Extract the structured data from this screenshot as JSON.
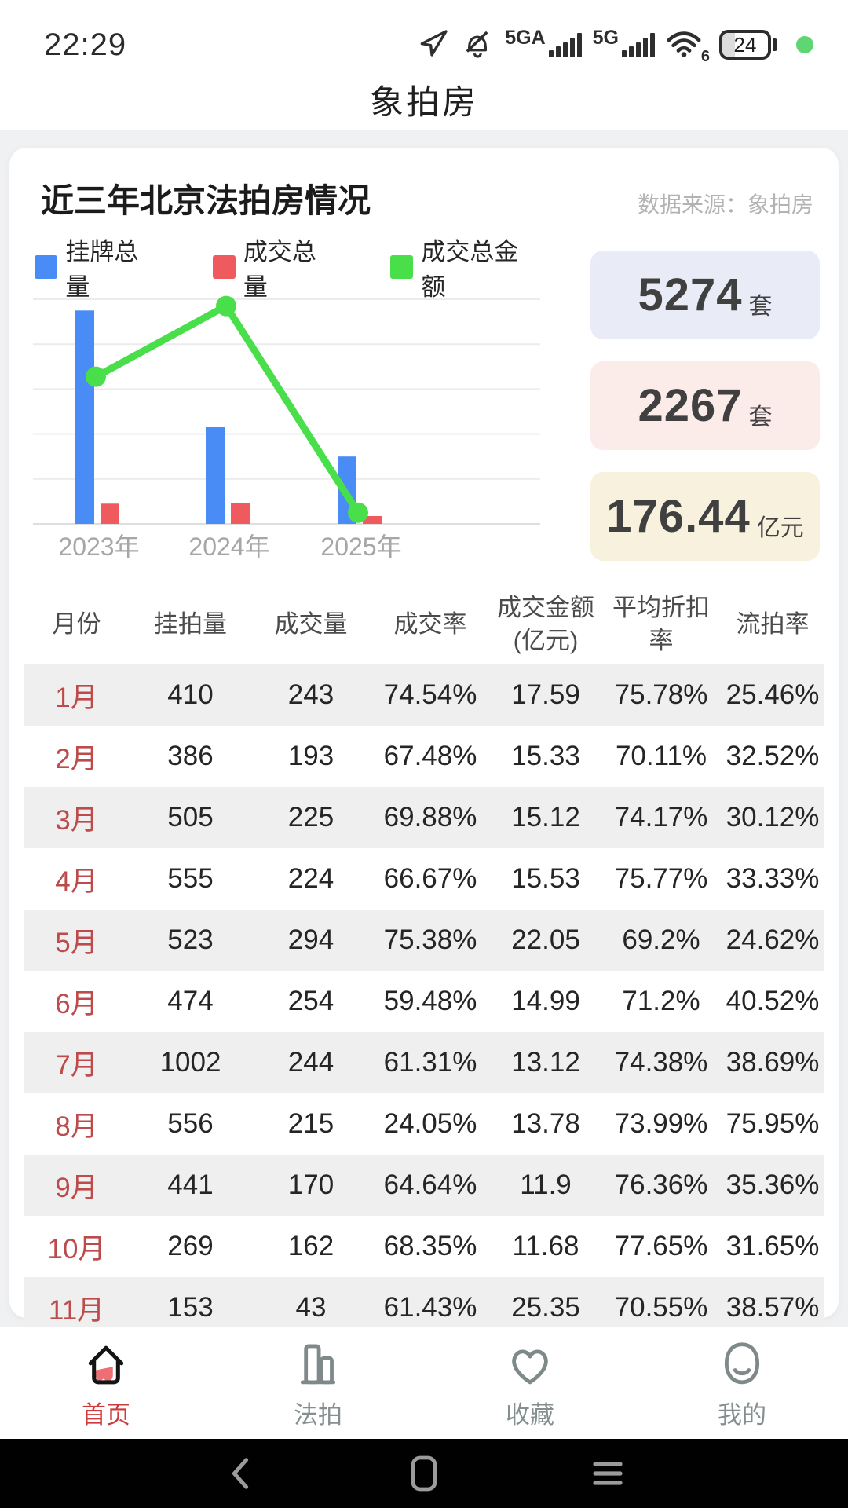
{
  "status_bar": {
    "time": "22:29",
    "network_label_1": "5GA",
    "network_label_2": "5G",
    "wifi_label": "6",
    "battery_level": "24",
    "indicator_color": "#5ed672"
  },
  "header": {
    "app_title": "象拍房"
  },
  "panel": {
    "title": "近三年北京法拍房情况",
    "source": "数据来源：象拍房",
    "legend": [
      {
        "label": "挂牌总量",
        "color": "#4a8cf5"
      },
      {
        "label": "成交总量",
        "color": "#ef5a5f"
      },
      {
        "label": "成交总金额",
        "color": "#49df4b"
      }
    ],
    "stat_cards": [
      {
        "value": "5274",
        "unit": "套",
        "bg": "#e9ebf7"
      },
      {
        "value": "2267",
        "unit": "套",
        "bg": "#fbecea"
      },
      {
        "value": "176.44",
        "unit": "亿元",
        "bg": "#f8f1dd"
      }
    ]
  },
  "chart_data": {
    "type": "bar",
    "subtype": "grouped-bars-with-line",
    "title": "近三年北京法拍房情况",
    "categories": [
      "2023年",
      "2024年",
      "2025年"
    ],
    "series": [
      {
        "name": "挂牌总量",
        "kind": "bar",
        "color": "#4a8cf5",
        "values_pct": [
          95,
          43,
          30
        ]
      },
      {
        "name": "成交总量",
        "kind": "bar",
        "color": "#ef5a5f",
        "values_pct": [
          9,
          9.4,
          3.5
        ]
      },
      {
        "name": "成交总金额",
        "kind": "line",
        "color": "#49df4b",
        "values_pct": [
          65.5,
          97,
          5
        ]
      }
    ],
    "y_axis": {
      "tick_labels_visible": false,
      "gridline_count": 6
    },
    "legend_position": "top"
  },
  "table": {
    "headers": [
      "月份",
      "挂拍量",
      "成交量",
      "成交率",
      "成交金额\n(亿元)",
      "平均折扣\n率",
      "流拍率"
    ],
    "rows": [
      [
        "1月",
        "410",
        "243",
        "74.54%",
        "17.59",
        "75.78%",
        "25.46%"
      ],
      [
        "2月",
        "386",
        "193",
        "67.48%",
        "15.33",
        "70.11%",
        "32.52%"
      ],
      [
        "3月",
        "505",
        "225",
        "69.88%",
        "15.12",
        "74.17%",
        "30.12%"
      ],
      [
        "4月",
        "555",
        "224",
        "66.67%",
        "15.53",
        "75.77%",
        "33.33%"
      ],
      [
        "5月",
        "523",
        "294",
        "75.38%",
        "22.05",
        "69.2%",
        "24.62%"
      ],
      [
        "6月",
        "474",
        "254",
        "59.48%",
        "14.99",
        "71.2%",
        "40.52%"
      ],
      [
        "7月",
        "1002",
        "244",
        "61.31%",
        "13.12",
        "74.38%",
        "38.69%"
      ],
      [
        "8月",
        "556",
        "215",
        "24.05%",
        "13.78",
        "73.99%",
        "75.95%"
      ],
      [
        "9月",
        "441",
        "170",
        "64.64%",
        "11.9",
        "76.36%",
        "35.36%"
      ],
      [
        "10月",
        "269",
        "162",
        "68.35%",
        "11.68",
        "77.65%",
        "31.65%"
      ],
      [
        "11月",
        "153",
        "43",
        "61.43%",
        "25.35",
        "70.55%",
        "38.57%"
      ]
    ]
  },
  "tab_bar": {
    "items": [
      {
        "label": "首页",
        "icon": "home-icon",
        "active": true
      },
      {
        "label": "法拍",
        "icon": "auction-icon",
        "active": false
      },
      {
        "label": "收藏",
        "icon": "heart-icon",
        "active": false
      },
      {
        "label": "我的",
        "icon": "profile-icon",
        "active": false
      }
    ]
  }
}
